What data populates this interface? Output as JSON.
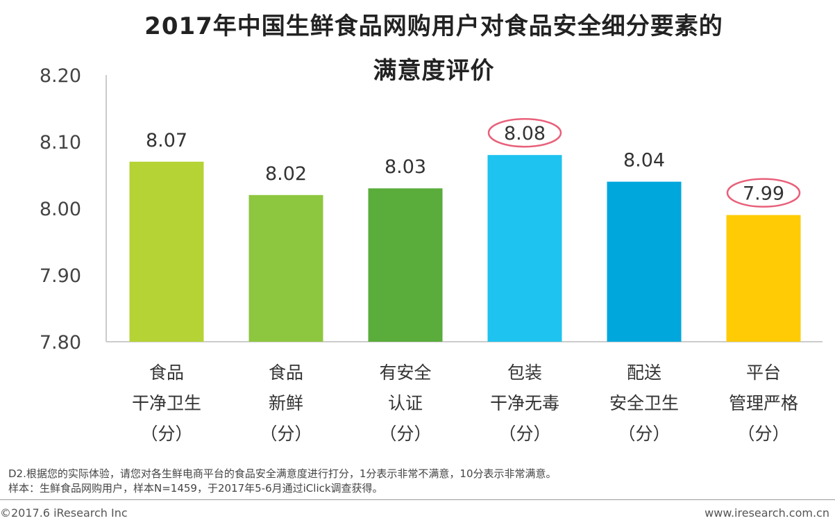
{
  "chart_data": {
    "type": "bar",
    "title_line1": "2017年中国生鲜食品网购用户对食品安全细分要素的",
    "title_line2": "满意度评价",
    "ylim": [
      7.8,
      8.2
    ],
    "yticks": [
      "8.20",
      "8.10",
      "8.00",
      "7.90",
      "7.80"
    ],
    "categories": [
      {
        "lines": [
          "食品",
          "干净卫生",
          "（分）"
        ],
        "value": 8.07,
        "label": "8.07",
        "color": "#b5d334",
        "highlight": false
      },
      {
        "lines": [
          "食品",
          "新鲜",
          "（分）"
        ],
        "value": 8.02,
        "label": "8.02",
        "color": "#8dc63f",
        "highlight": false
      },
      {
        "lines": [
          "有安全",
          "认证",
          "（分）"
        ],
        "value": 8.03,
        "label": "8.03",
        "color": "#5aac3b",
        "highlight": false
      },
      {
        "lines": [
          "包装",
          "干净无毒",
          "（分）"
        ],
        "value": 8.08,
        "label": "8.08",
        "color": "#1ec3ef",
        "highlight": true
      },
      {
        "lines": [
          "配送",
          "安全卫生",
          "（分）"
        ],
        "value": 8.04,
        "label": "8.04",
        "color": "#00a7dd",
        "highlight": false
      },
      {
        "lines": [
          "平台",
          "管理严格",
          "（分）"
        ],
        "value": 7.99,
        "label": "7.99",
        "color": "#fecb05",
        "highlight": true
      }
    ]
  },
  "notes": {
    "line1": "D2.根据您的实际体验，请您对各生鲜电商平台的食品安全满意度进行打分，1分表示非常不满意，10分表示非常满意。",
    "line2": "样本：生鲜食品网购用户，样本N=1459，于2017年5-6月通过iClick调查获得。"
  },
  "footer": {
    "left": "©2017.6 iResearch Inc",
    "right": "www.iresearch.com.cn"
  },
  "colors": {
    "axis": "#cccccc",
    "highlight_ring": "#e8607a"
  }
}
